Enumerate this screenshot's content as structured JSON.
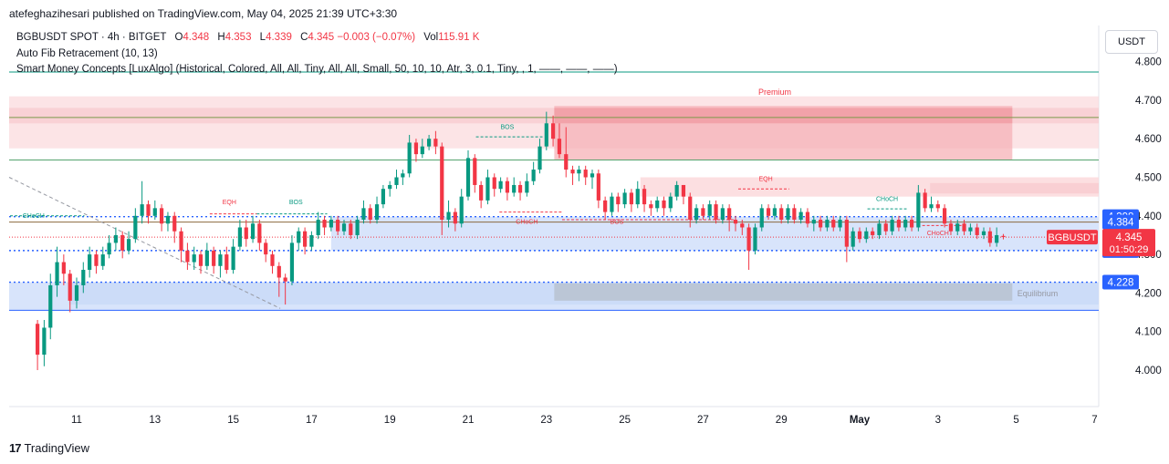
{
  "header": {
    "publish_line": "atefeghazihesari published on TradingView.com, May 04, 2025 21:39 UTC+3:30"
  },
  "legend": {
    "symbol": "BGBUSDT SPOT · 4h · BITGET",
    "o_label": "O",
    "o_value": "4.348",
    "h_label": "H",
    "h_value": "4.353",
    "l_label": "L",
    "l_value": "4.339",
    "c_label": "C",
    "c_value": "4.345",
    "change": "−0.003 (−0.07%)",
    "vol_label": "Vol",
    "vol_value": "115.91 K",
    "indicator1": "Auto Fib Retracement (10, 13)",
    "indicator2": "Smart Money Concepts [LuxAlgo] (Historical, Colored, All, All, Tiny, All, All, Small, 50, 10, 10, Atr, 3, 0.1, Tiny, , 1, ——, ——, ——)"
  },
  "currency_button": "USDT",
  "footer": {
    "brand": "TradingView"
  },
  "colors": {
    "up": "#089981",
    "down": "#f23645",
    "blue_label": "#2962ff",
    "premium_zone": "#f7c5c9",
    "discount_zone": "#c9daf8"
  },
  "chart_data": {
    "type": "candlestick",
    "symbol": "BGBUSDT",
    "timeframe": "4h",
    "y_ticks": [
      "4.800",
      "4.700",
      "4.600",
      "4.500",
      "4.400",
      "4.300",
      "4.200",
      "4.100",
      "4.000"
    ],
    "ylim": [
      3.92,
      4.86
    ],
    "x_ticks": [
      {
        "label": "11",
        "day": 11
      },
      {
        "label": "13",
        "day": 13
      },
      {
        "label": "15",
        "day": 15
      },
      {
        "label": "17",
        "day": 17
      },
      {
        "label": "19",
        "day": 19
      },
      {
        "label": "21",
        "day": 21
      },
      {
        "label": "23",
        "day": 23
      },
      {
        "label": "25",
        "day": 25
      },
      {
        "label": "27",
        "day": 27
      },
      {
        "label": "29",
        "day": 29
      },
      {
        "label": "May",
        "day": 31
      },
      {
        "label": "3",
        "day": 33
      },
      {
        "label": "5",
        "day": 35
      },
      {
        "label": "7",
        "day": 37
      }
    ],
    "xlim_day": [
      9.2,
      37.0
    ],
    "current_price": "4.345",
    "countdown": "01:50:29",
    "price_labels": [
      {
        "value": "4.398",
        "kind": "blue"
      },
      {
        "value": "4.384",
        "kind": "blue"
      },
      {
        "value": "4.310",
        "kind": "blue"
      },
      {
        "value": "4.228",
        "kind": "blue"
      }
    ],
    "last_label": "BGBUSDT",
    "zone_labels": {
      "premium": "Premium",
      "equilibrium": "Equilibrium"
    },
    "structure_labels": [
      {
        "text": "CHoCH",
        "day": 9.9,
        "price": 4.395,
        "color": "up"
      },
      {
        "text": "EQH",
        "day": 14.9,
        "price": 4.43,
        "color": "down"
      },
      {
        "text": "BOS",
        "day": 16.6,
        "price": 4.43,
        "color": "up"
      },
      {
        "text": "BOS",
        "day": 22.0,
        "price": 4.625,
        "color": "up"
      },
      {
        "text": "CHoCH",
        "day": 22.5,
        "price": 4.38,
        "color": "down"
      },
      {
        "text": "BOS",
        "day": 24.8,
        "price": 4.38,
        "color": "down"
      },
      {
        "text": "EQH",
        "day": 28.6,
        "price": 4.49,
        "color": "down"
      },
      {
        "text": "CHoCH",
        "day": 31.7,
        "price": 4.438,
        "color": "up"
      },
      {
        "text": "CHoCH",
        "day": 33.0,
        "price": 4.35,
        "color": "down"
      }
    ],
    "candles": [
      [
        10.0,
        4.12,
        4.04,
        4.13,
        4.0
      ],
      [
        10.17,
        4.04,
        4.11,
        4.13,
        4.01
      ],
      [
        10.33,
        4.11,
        4.22,
        4.25,
        4.08
      ],
      [
        10.5,
        4.22,
        4.28,
        4.32,
        4.19
      ],
      [
        10.67,
        4.28,
        4.25,
        4.3,
        4.22
      ],
      [
        10.83,
        4.25,
        4.18,
        4.26,
        4.15
      ],
      [
        11.0,
        4.18,
        4.22,
        4.24,
        4.16
      ],
      [
        11.17,
        4.22,
        4.26,
        4.28,
        4.2
      ],
      [
        11.33,
        4.26,
        4.3,
        4.32,
        4.24
      ],
      [
        11.5,
        4.3,
        4.27,
        4.31,
        4.25
      ],
      [
        11.67,
        4.27,
        4.3,
        4.32,
        4.26
      ],
      [
        11.83,
        4.3,
        4.33,
        4.35,
        4.29
      ],
      [
        12.0,
        4.33,
        4.35,
        4.37,
        4.31
      ],
      [
        12.17,
        4.35,
        4.31,
        4.36,
        4.29
      ],
      [
        12.33,
        4.31,
        4.34,
        4.36,
        4.3
      ],
      [
        12.5,
        4.34,
        4.4,
        4.42,
        4.33
      ],
      [
        12.67,
        4.4,
        4.43,
        4.49,
        4.38
      ],
      [
        12.83,
        4.43,
        4.4,
        4.44,
        4.38
      ],
      [
        13.0,
        4.4,
        4.42,
        4.44,
        4.39
      ],
      [
        13.17,
        4.42,
        4.38,
        4.43,
        4.36
      ],
      [
        13.33,
        4.38,
        4.4,
        4.41,
        4.36
      ],
      [
        13.5,
        4.4,
        4.36,
        4.41,
        4.33
      ],
      [
        13.67,
        4.36,
        4.31,
        4.37,
        4.28
      ],
      [
        13.83,
        4.31,
        4.28,
        4.33,
        4.26
      ],
      [
        14.0,
        4.28,
        4.3,
        4.32,
        4.26
      ],
      [
        14.17,
        4.3,
        4.27,
        4.31,
        4.25
      ],
      [
        14.33,
        4.27,
        4.31,
        4.33,
        4.26
      ],
      [
        14.5,
        4.31,
        4.27,
        4.32,
        4.25
      ],
      [
        14.67,
        4.27,
        4.3,
        4.31,
        4.24
      ],
      [
        14.83,
        4.3,
        4.26,
        4.32,
        4.25
      ],
      [
        15.0,
        4.26,
        4.32,
        4.34,
        4.25
      ],
      [
        15.17,
        4.32,
        4.37,
        4.39,
        4.31
      ],
      [
        15.33,
        4.37,
        4.34,
        4.39,
        4.32
      ],
      [
        15.5,
        4.34,
        4.38,
        4.4,
        4.33
      ],
      [
        15.67,
        4.38,
        4.33,
        4.39,
        4.31
      ],
      [
        15.83,
        4.33,
        4.3,
        4.34,
        4.28
      ],
      [
        16.0,
        4.3,
        4.27,
        4.31,
        4.25
      ],
      [
        16.17,
        4.27,
        4.24,
        4.28,
        4.19
      ],
      [
        16.33,
        4.24,
        4.23,
        4.25,
        4.17
      ],
      [
        16.5,
        4.23,
        4.33,
        4.35,
        4.22
      ],
      [
        16.67,
        4.33,
        4.36,
        4.37,
        4.31
      ],
      [
        16.83,
        4.36,
        4.32,
        4.37,
        4.3
      ],
      [
        17.0,
        4.32,
        4.35,
        4.36,
        4.31
      ],
      [
        17.17,
        4.35,
        4.39,
        4.41,
        4.34
      ],
      [
        17.33,
        4.39,
        4.37,
        4.4,
        4.35
      ],
      [
        17.5,
        4.37,
        4.39,
        4.4,
        4.36
      ],
      [
        17.67,
        4.39,
        4.36,
        4.4,
        4.35
      ],
      [
        17.83,
        4.36,
        4.38,
        4.39,
        4.35
      ],
      [
        18.0,
        4.38,
        4.35,
        4.39,
        4.34
      ],
      [
        18.17,
        4.35,
        4.39,
        4.4,
        4.34
      ],
      [
        18.33,
        4.39,
        4.42,
        4.44,
        4.38
      ],
      [
        18.5,
        4.42,
        4.39,
        4.43,
        4.38
      ],
      [
        18.67,
        4.39,
        4.43,
        4.45,
        4.38
      ],
      [
        18.83,
        4.43,
        4.47,
        4.48,
        4.42
      ],
      [
        19.0,
        4.47,
        4.48,
        4.49,
        4.45
      ],
      [
        19.17,
        4.48,
        4.5,
        4.52,
        4.47
      ],
      [
        19.33,
        4.5,
        4.51,
        4.52,
        4.48
      ],
      [
        19.5,
        4.51,
        4.59,
        4.61,
        4.5
      ],
      [
        19.67,
        4.59,
        4.56,
        4.6,
        4.54
      ],
      [
        19.83,
        4.56,
        4.58,
        4.6,
        4.55
      ],
      [
        20.0,
        4.58,
        4.6,
        4.61,
        4.57
      ],
      [
        20.17,
        4.6,
        4.58,
        4.62,
        4.56
      ],
      [
        20.33,
        4.58,
        4.39,
        4.59,
        4.35
      ],
      [
        20.5,
        4.39,
        4.41,
        4.44,
        4.37
      ],
      [
        20.67,
        4.41,
        4.38,
        4.42,
        4.36
      ],
      [
        20.83,
        4.38,
        4.45,
        4.47,
        4.37
      ],
      [
        21.0,
        4.45,
        4.55,
        4.57,
        4.44
      ],
      [
        21.17,
        4.55,
        4.48,
        4.56,
        4.46
      ],
      [
        21.33,
        4.48,
        4.44,
        4.49,
        4.42
      ],
      [
        21.5,
        4.44,
        4.5,
        4.52,
        4.43
      ],
      [
        21.67,
        4.5,
        4.47,
        4.51,
        4.45
      ],
      [
        21.83,
        4.47,
        4.49,
        4.5,
        4.46
      ],
      [
        22.0,
        4.49,
        4.46,
        4.5,
        4.44
      ],
      [
        22.17,
        4.46,
        4.48,
        4.5,
        4.45
      ],
      [
        22.33,
        4.48,
        4.46,
        4.49,
        4.44
      ],
      [
        22.5,
        4.46,
        4.49,
        4.51,
        4.45
      ],
      [
        22.67,
        4.49,
        4.52,
        4.54,
        4.48
      ],
      [
        22.83,
        4.52,
        4.58,
        4.6,
        4.51
      ],
      [
        23.0,
        4.58,
        4.64,
        4.67,
        4.57
      ],
      [
        23.17,
        4.64,
        4.6,
        4.66,
        4.58
      ],
      [
        23.33,
        4.6,
        4.56,
        4.64,
        4.55
      ],
      [
        23.5,
        4.56,
        4.52,
        4.63,
        4.5
      ],
      [
        23.67,
        4.52,
        4.51,
        4.53,
        4.48
      ],
      [
        23.83,
        4.51,
        4.52,
        4.53,
        4.49
      ],
      [
        24.0,
        4.52,
        4.5,
        4.53,
        4.48
      ],
      [
        24.17,
        4.5,
        4.51,
        4.52,
        4.47
      ],
      [
        24.33,
        4.51,
        4.44,
        4.52,
        4.42
      ],
      [
        24.5,
        4.44,
        4.41,
        4.45,
        4.39
      ],
      [
        24.67,
        4.41,
        4.45,
        4.46,
        4.4
      ],
      [
        24.83,
        4.45,
        4.43,
        4.46,
        4.41
      ],
      [
        25.0,
        4.43,
        4.46,
        4.47,
        4.42
      ],
      [
        25.17,
        4.46,
        4.43,
        4.47,
        4.41
      ],
      [
        25.33,
        4.43,
        4.47,
        4.49,
        4.42
      ],
      [
        25.5,
        4.47,
        4.43,
        4.48,
        4.41
      ],
      [
        25.67,
        4.43,
        4.42,
        4.44,
        4.4
      ],
      [
        25.83,
        4.42,
        4.44,
        4.45,
        4.41
      ],
      [
        26.0,
        4.44,
        4.42,
        4.45,
        4.4
      ],
      [
        26.17,
        4.42,
        4.45,
        4.46,
        4.41
      ],
      [
        26.33,
        4.45,
        4.48,
        4.49,
        4.44
      ],
      [
        26.5,
        4.48,
        4.45,
        4.48,
        4.43
      ],
      [
        26.67,
        4.45,
        4.39,
        4.46,
        4.37
      ],
      [
        26.83,
        4.39,
        4.42,
        4.43,
        4.38
      ],
      [
        27.0,
        4.42,
        4.4,
        4.43,
        4.39
      ],
      [
        27.17,
        4.4,
        4.43,
        4.44,
        4.39
      ],
      [
        27.33,
        4.43,
        4.39,
        4.44,
        4.38
      ],
      [
        27.5,
        4.39,
        4.42,
        4.43,
        4.38
      ],
      [
        27.67,
        4.42,
        4.39,
        4.43,
        4.36
      ],
      [
        27.83,
        4.39,
        4.38,
        4.4,
        4.36
      ],
      [
        28.0,
        4.38,
        4.37,
        4.39,
        4.35
      ],
      [
        28.17,
        4.37,
        4.31,
        4.38,
        4.26
      ],
      [
        28.33,
        4.31,
        4.37,
        4.38,
        4.3
      ],
      [
        28.5,
        4.37,
        4.42,
        4.43,
        4.36
      ],
      [
        28.67,
        4.42,
        4.4,
        4.43,
        4.39
      ],
      [
        28.83,
        4.4,
        4.42,
        4.43,
        4.39
      ],
      [
        29.0,
        4.42,
        4.39,
        4.43,
        4.38
      ],
      [
        29.17,
        4.39,
        4.42,
        4.43,
        4.38
      ],
      [
        29.33,
        4.42,
        4.39,
        4.43,
        4.38
      ],
      [
        29.5,
        4.39,
        4.41,
        4.42,
        4.38
      ],
      [
        29.67,
        4.41,
        4.38,
        4.42,
        4.37
      ],
      [
        29.83,
        4.38,
        4.39,
        4.4,
        4.36
      ],
      [
        30.0,
        4.39,
        4.37,
        4.4,
        4.36
      ],
      [
        30.17,
        4.37,
        4.39,
        4.4,
        4.36
      ],
      [
        30.33,
        4.39,
        4.37,
        4.4,
        4.36
      ],
      [
        30.5,
        4.37,
        4.39,
        4.4,
        4.36
      ],
      [
        30.67,
        4.39,
        4.32,
        4.4,
        4.28
      ],
      [
        30.83,
        4.32,
        4.36,
        4.37,
        4.31
      ],
      [
        31.0,
        4.36,
        4.34,
        4.37,
        4.33
      ],
      [
        31.17,
        4.34,
        4.36,
        4.37,
        4.33
      ],
      [
        31.33,
        4.36,
        4.35,
        4.37,
        4.34
      ],
      [
        31.5,
        4.35,
        4.38,
        4.39,
        4.34
      ],
      [
        31.67,
        4.38,
        4.36,
        4.39,
        4.35
      ],
      [
        31.83,
        4.36,
        4.39,
        4.4,
        4.35
      ],
      [
        32.0,
        4.39,
        4.37,
        4.4,
        4.36
      ],
      [
        32.17,
        4.37,
        4.39,
        4.4,
        4.36
      ],
      [
        32.33,
        4.39,
        4.37,
        4.4,
        4.36
      ],
      [
        32.5,
        4.37,
        4.46,
        4.48,
        4.36
      ],
      [
        32.67,
        4.46,
        4.42,
        4.47,
        4.41
      ],
      [
        32.83,
        4.42,
        4.43,
        4.45,
        4.41
      ],
      [
        33.0,
        4.43,
        4.42,
        4.44,
        4.41
      ],
      [
        33.17,
        4.42,
        4.38,
        4.43,
        4.37
      ],
      [
        33.33,
        4.38,
        4.36,
        4.39,
        4.35
      ],
      [
        33.5,
        4.36,
        4.38,
        4.39,
        4.35
      ],
      [
        33.67,
        4.38,
        4.36,
        4.39,
        4.35
      ],
      [
        33.83,
        4.36,
        4.37,
        4.38,
        4.35
      ],
      [
        34.0,
        4.37,
        4.35,
        4.38,
        4.34
      ],
      [
        34.17,
        4.35,
        4.36,
        4.37,
        4.34
      ],
      [
        34.33,
        4.36,
        4.33,
        4.37,
        4.32
      ],
      [
        34.5,
        4.33,
        4.35,
        4.37,
        4.32
      ],
      [
        34.67,
        4.348,
        4.345,
        4.353,
        4.339
      ]
    ]
  }
}
